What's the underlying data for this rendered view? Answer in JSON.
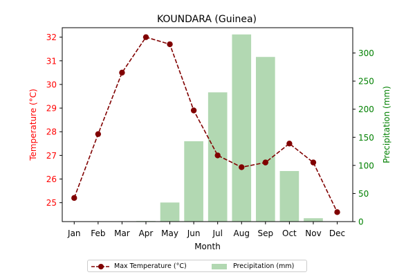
{
  "chart_data": {
    "type": "bar+line",
    "title": "KOUNDARA (Guinea)",
    "xlabel": "Month",
    "ylabel_left": "Temperature (°C)",
    "ylabel_right": "Precipitation (mm)",
    "categories": [
      "Jan",
      "Feb",
      "Mar",
      "Apr",
      "May",
      "Jun",
      "Jul",
      "Aug",
      "Sep",
      "Oct",
      "Nov",
      "Dec"
    ],
    "y_left_lim": [
      24.2,
      32.4
    ],
    "y_left_ticks": [
      "25",
      "26",
      "27",
      "28",
      "29",
      "30",
      "31",
      "32"
    ],
    "y_right_lim": [
      0,
      345
    ],
    "y_right_ticks": [
      "0",
      "50",
      "100",
      "150",
      "200",
      "250",
      "300"
    ],
    "series": [
      {
        "name": "Max Temperature (°C)",
        "type": "line",
        "axis": "left",
        "values": [
          25.2,
          27.9,
          30.5,
          32.0,
          31.7,
          28.9,
          27.0,
          26.5,
          26.7,
          27.5,
          26.7,
          24.6
        ]
      },
      {
        "name": "Precipitation (mm)",
        "type": "bar",
        "axis": "right",
        "values": [
          0,
          0,
          0,
          1,
          34,
          143,
          230,
          333,
          293,
          90,
          6,
          0
        ]
      }
    ],
    "colors": {
      "temperature": "#800000",
      "precipitation": "#b2d8b2",
      "left_axis": "#ff0000",
      "right_axis": "#008000"
    },
    "legend_position": "bottom-center",
    "grid": false
  }
}
